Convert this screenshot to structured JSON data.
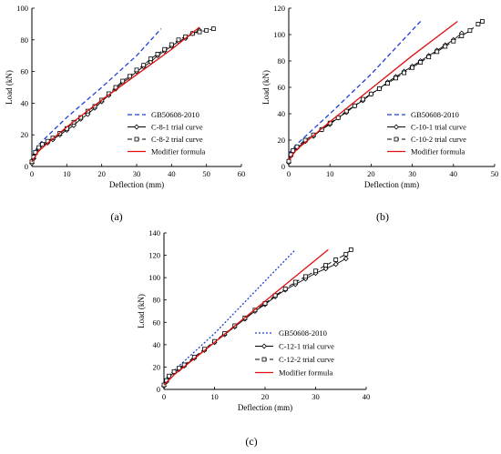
{
  "chart_data": [
    {
      "type": "line",
      "panel_label": "(a)",
      "xlabel": "Deflection (mm)",
      "ylabel": "Load (kN)",
      "xlim": [
        0,
        60
      ],
      "ylim": [
        0,
        100
      ],
      "xticks": [
        "0",
        "10",
        "20",
        "30",
        "40",
        "50",
        "60"
      ],
      "yticks": [
        "0",
        "20",
        "40",
        "60",
        "80",
        "100"
      ],
      "grid": false,
      "legend_position": "bottom-right",
      "series": [
        {
          "name": "GB50608-2010",
          "color": "#1f3fd6",
          "style": "dashed",
          "marker": "none",
          "x": [
            0,
            2,
            10,
            20,
            30,
            37
          ],
          "y": [
            6,
            14,
            31,
            50,
            70,
            87
          ]
        },
        {
          "name": "C-8-1 trial curve",
          "color": "#000000",
          "style": "solid",
          "marker": "diamond",
          "x": [
            0,
            0.5,
            1,
            2,
            3,
            4.5,
            6,
            8,
            10,
            12,
            14,
            16,
            18,
            20,
            22,
            24,
            26,
            28,
            30,
            32,
            34,
            36,
            38,
            40,
            42,
            44,
            46,
            48
          ],
          "y": [
            2,
            5,
            8,
            11,
            13,
            15,
            17,
            20,
            23,
            26,
            30,
            33,
            37,
            41,
            45,
            49,
            53,
            56,
            60,
            63,
            66,
            70,
            73,
            76,
            79,
            81,
            84,
            86
          ]
        },
        {
          "name": "C-8-2 trial curve",
          "color": "#000000",
          "style": "dashed",
          "marker": "square",
          "x": [
            0,
            0.5,
            1,
            2,
            3,
            4.5,
            6,
            8,
            10,
            12,
            14,
            16,
            18,
            20,
            22,
            24,
            26,
            28,
            30,
            32,
            34,
            36,
            38,
            40,
            42,
            44,
            46,
            48,
            50,
            52
          ],
          "y": [
            3,
            6,
            9,
            12,
            14,
            16,
            18,
            21,
            24,
            28,
            31,
            35,
            38,
            42,
            46,
            50,
            54,
            57,
            61,
            64,
            68,
            71,
            74,
            77,
            80,
            82,
            84,
            85,
            86,
            87
          ]
        },
        {
          "name": "Modifier formula",
          "color": "#e01010",
          "style": "solid",
          "marker": "none",
          "x": [
            0,
            2,
            10,
            20,
            30,
            40,
            48
          ],
          "y": [
            3,
            10,
            25,
            42,
            58,
            74,
            88
          ]
        }
      ]
    },
    {
      "type": "line",
      "panel_label": "(b)",
      "xlabel": "Deflection (mm)",
      "ylabel": "Load (kN)",
      "xlim": [
        0,
        50
      ],
      "ylim": [
        0,
        120
      ],
      "xticks": [
        "0",
        "10",
        "20",
        "30",
        "40",
        "50"
      ],
      "yticks": [
        "0",
        "20",
        "40",
        "60",
        "80",
        "100",
        "120"
      ],
      "grid": false,
      "legend_position": "bottom-right",
      "series": [
        {
          "name": "GB50608-2010",
          "color": "#1f3fd6",
          "style": "dashed",
          "marker": "none",
          "x": [
            0,
            2,
            10,
            20,
            32
          ],
          "y": [
            10,
            17,
            40,
            70,
            110
          ]
        },
        {
          "name": "C-10-1 trial curve",
          "color": "#000000",
          "style": "solid",
          "marker": "diamond",
          "x": [
            0,
            0.5,
            1,
            2,
            4,
            6,
            8,
            10,
            12,
            14,
            16,
            18,
            20,
            22,
            24,
            26,
            28,
            30,
            32,
            34,
            36,
            38,
            40,
            42
          ],
          "y": [
            3,
            8,
            11,
            14,
            19,
            23,
            28,
            32,
            37,
            41,
            46,
            50,
            55,
            59,
            64,
            68,
            72,
            76,
            80,
            84,
            88,
            92,
            96,
            101
          ]
        },
        {
          "name": "C-10-2 trial curve",
          "color": "#000000",
          "style": "dashed",
          "marker": "square",
          "x": [
            0,
            0.5,
            1,
            2,
            4,
            6,
            8,
            10,
            12,
            14,
            16,
            18,
            20,
            22,
            24,
            26,
            28,
            30,
            32,
            34,
            36,
            38,
            40,
            42,
            44,
            46,
            47
          ],
          "y": [
            4,
            9,
            12,
            15,
            20,
            24,
            28,
            33,
            37,
            42,
            46,
            51,
            55,
            59,
            63,
            67,
            71,
            75,
            79,
            83,
            87,
            91,
            95,
            99,
            103,
            108,
            110
          ]
        },
        {
          "name": "Modifier formula",
          "color": "#e01010",
          "style": "solid",
          "marker": "none",
          "x": [
            0,
            2,
            10,
            20,
            30,
            41
          ],
          "y": [
            5,
            13,
            34,
            59,
            84,
            110
          ]
        }
      ]
    },
    {
      "type": "line",
      "panel_label": "(c)",
      "xlabel": "Deflection (mm)",
      "ylabel": "Load (kN)",
      "xlim": [
        0,
        40
      ],
      "ylim": [
        0,
        140
      ],
      "xticks": [
        "0",
        "10",
        "20",
        "30",
        "40"
      ],
      "yticks": [
        "0",
        "20",
        "40",
        "60",
        "80",
        "100",
        "120",
        "140"
      ],
      "grid": false,
      "legend_position": "bottom-right",
      "series": [
        {
          "name": "GB50608-2010",
          "color": "#1f3fd6",
          "style": "dotted",
          "marker": "none",
          "x": [
            0,
            2,
            10,
            20,
            26
          ],
          "y": [
            8,
            17,
            50,
            97,
            125
          ]
        },
        {
          "name": "C-12-1 trial curve",
          "color": "#000000",
          "style": "solid",
          "marker": "diamond",
          "x": [
            0,
            0.5,
            1,
            2,
            3,
            4,
            6,
            8,
            10,
            12,
            14,
            16,
            18,
            20,
            22,
            24,
            26,
            28,
            30,
            32,
            34,
            36
          ],
          "y": [
            3,
            7,
            11,
            15,
            18,
            21,
            28,
            35,
            42,
            49,
            56,
            63,
            70,
            76,
            83,
            89,
            94,
            99,
            104,
            108,
            112,
            117
          ]
        },
        {
          "name": "C-12-2 trial curve",
          "color": "#000000",
          "style": "dashed",
          "marker": "square",
          "x": [
            0,
            0.5,
            1,
            2,
            3,
            4,
            6,
            8,
            10,
            12,
            14,
            16,
            18,
            20,
            22,
            24,
            26,
            28,
            30,
            32,
            34,
            36,
            37
          ],
          "y": [
            4,
            8,
            12,
            16,
            19,
            22,
            29,
            36,
            43,
            50,
            57,
            64,
            71,
            77,
            84,
            90,
            96,
            101,
            106,
            111,
            116,
            121,
            125
          ]
        },
        {
          "name": "Modifier formula",
          "color": "#e01010",
          "style": "solid",
          "marker": "none",
          "x": [
            0,
            2,
            10,
            20,
            32.5
          ],
          "y": [
            4,
            13,
            42,
            79,
            125
          ]
        }
      ]
    }
  ]
}
